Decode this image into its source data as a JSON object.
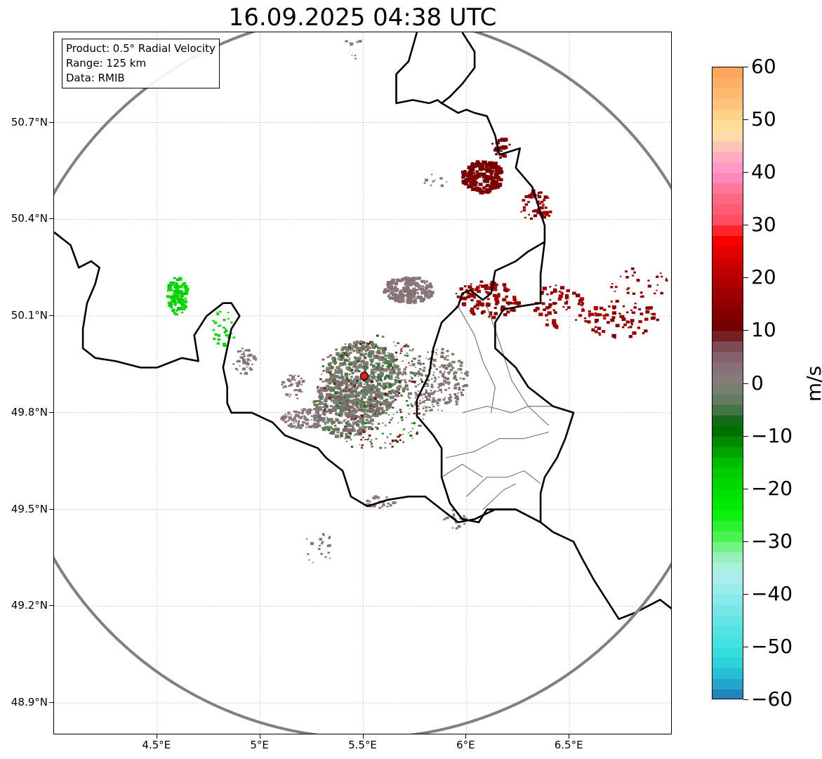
{
  "title": "16.09.2025 04:38 UTC",
  "info_box": {
    "product": "Product: 0.5° Radial Velocity",
    "range": "Range: 125 km",
    "data": "Data: RMIB"
  },
  "lat_ticks": [
    {
      "value": 50.7,
      "label": "50.7°N"
    },
    {
      "value": 50.4,
      "label": "50.4°N"
    },
    {
      "value": 50.1,
      "label": "50.1°N"
    },
    {
      "value": 49.8,
      "label": "49.8°N"
    },
    {
      "value": 49.5,
      "label": "49.5°N"
    },
    {
      "value": 49.2,
      "label": "49.2°N"
    },
    {
      "value": 48.9,
      "label": "48.9°N"
    }
  ],
  "lon_ticks": [
    {
      "value": 4.5,
      "label": "4.5°E"
    },
    {
      "value": 5.0,
      "label": "5°E"
    },
    {
      "value": 5.5,
      "label": "5.5°E"
    },
    {
      "value": 6.0,
      "label": "6°E"
    },
    {
      "value": 6.5,
      "label": "6.5°E"
    }
  ],
  "extent": {
    "lon_min": 4.0,
    "lon_max": 7.0,
    "lat_min": 48.8,
    "lat_max": 50.98
  },
  "radar_site": {
    "lon": 5.505,
    "lat": 49.914,
    "color": "#e41a1c"
  },
  "colorbar": {
    "unit": "m/s",
    "min": -60,
    "max": 60,
    "ticks": [
      {
        "value": 60,
        "label": "60"
      },
      {
        "value": 50,
        "label": "50"
      },
      {
        "value": 40,
        "label": "40"
      },
      {
        "value": 30,
        "label": "30"
      },
      {
        "value": 20,
        "label": "20"
      },
      {
        "value": 10,
        "label": "10"
      },
      {
        "value": 0,
        "label": "0"
      },
      {
        "value": -10,
        "label": "−10"
      },
      {
        "value": -20,
        "label": "−20"
      },
      {
        "value": -30,
        "label": "−30"
      },
      {
        "value": -40,
        "label": "−40"
      },
      {
        "value": -50,
        "label": "−50"
      },
      {
        "value": -60,
        "label": "−60"
      }
    ],
    "stops": [
      {
        "v": -60,
        "c": "#1f77b4"
      },
      {
        "v": -56,
        "c": "#26b4d4"
      },
      {
        "v": -52,
        "c": "#2edcdc"
      },
      {
        "v": -44,
        "c": "#6ce6e6"
      },
      {
        "v": -36,
        "c": "#b4eef0"
      },
      {
        "v": -32,
        "c": "#90f0a8"
      },
      {
        "v": -30,
        "c": "#55f560"
      },
      {
        "v": -24,
        "c": "#00ee00"
      },
      {
        "v": -16,
        "c": "#00c800"
      },
      {
        "v": -8,
        "c": "#006400"
      },
      {
        "v": -4,
        "c": "#5a7a5a"
      },
      {
        "v": 0,
        "c": "#868078"
      },
      {
        "v": 4,
        "c": "#8a6a78"
      },
      {
        "v": 8,
        "c": "#7a4048"
      },
      {
        "v": 10,
        "c": "#6e0000"
      },
      {
        "v": 20,
        "c": "#b40000"
      },
      {
        "v": 28,
        "c": "#ff0000"
      },
      {
        "v": 30,
        "c": "#ff4858"
      },
      {
        "v": 36,
        "c": "#ff6e8c"
      },
      {
        "v": 40,
        "c": "#ff90c8"
      },
      {
        "v": 44,
        "c": "#ffb8c0"
      },
      {
        "v": 48,
        "c": "#ffe6a0"
      },
      {
        "v": 52,
        "c": "#ffc880"
      },
      {
        "v": 60,
        "c": "#ffa055"
      }
    ]
  },
  "borders_bold": [
    [
      [
        4.0,
        50.36
      ],
      [
        4.08,
        50.32
      ],
      [
        4.12,
        50.25
      ],
      [
        4.18,
        50.27
      ],
      [
        4.22,
        50.25
      ],
      [
        4.2,
        50.2
      ],
      [
        4.16,
        50.14
      ],
      [
        4.14,
        50.06
      ],
      [
        4.14,
        50.0
      ],
      [
        4.2,
        49.97
      ],
      [
        4.3,
        49.96
      ],
      [
        4.42,
        49.94
      ],
      [
        4.5,
        49.94
      ],
      [
        4.62,
        49.97
      ],
      [
        4.7,
        49.96
      ],
      [
        4.68,
        50.04
      ],
      [
        4.74,
        50.1
      ],
      [
        4.82,
        50.14
      ],
      [
        4.86,
        50.14
      ],
      [
        4.9,
        50.1
      ],
      [
        4.86,
        50.06
      ],
      [
        4.84,
        50.0
      ],
      [
        4.82,
        49.94
      ],
      [
        4.84,
        49.88
      ],
      [
        4.84,
        49.83
      ],
      [
        4.86,
        49.8
      ],
      [
        4.96,
        49.8
      ],
      [
        5.06,
        49.77
      ],
      [
        5.12,
        49.73
      ],
      [
        5.2,
        49.71
      ],
      [
        5.28,
        49.69
      ],
      [
        5.32,
        49.66
      ],
      [
        5.4,
        49.62
      ],
      [
        5.44,
        49.54
      ],
      [
        5.52,
        49.51
      ],
      [
        5.62,
        49.53
      ],
      [
        5.72,
        49.54
      ],
      [
        5.8,
        49.54
      ],
      [
        5.88,
        49.5
      ],
      [
        5.96,
        49.46
      ],
      [
        6.04,
        49.47
      ],
      [
        6.14,
        49.5
      ],
      [
        6.24,
        49.5
      ],
      [
        6.36,
        49.46
      ],
      [
        6.42,
        49.43
      ],
      [
        6.52,
        49.4
      ],
      [
        6.56,
        49.35
      ],
      [
        6.62,
        49.28
      ],
      [
        6.68,
        49.22
      ],
      [
        6.74,
        49.16
      ],
      [
        6.82,
        49.18
      ],
      [
        6.88,
        49.2
      ],
      [
        6.94,
        49.22
      ],
      [
        7.0,
        49.19
      ]
    ],
    [
      [
        5.82,
        50.76
      ],
      [
        5.86,
        50.77
      ],
      [
        5.88,
        50.76
      ],
      [
        5.96,
        50.73
      ],
      [
        6.0,
        50.74
      ],
      [
        6.04,
        50.73
      ],
      [
        6.1,
        50.72
      ],
      [
        6.14,
        50.66
      ],
      [
        6.16,
        50.6
      ],
      [
        6.26,
        50.62
      ],
      [
        6.24,
        50.56
      ],
      [
        6.32,
        50.5
      ],
      [
        6.34,
        50.46
      ],
      [
        6.38,
        50.38
      ],
      [
        6.38,
        50.33
      ],
      [
        6.3,
        50.3
      ],
      [
        6.24,
        50.27
      ],
      [
        6.14,
        50.24
      ],
      [
        6.12,
        50.17
      ],
      [
        6.08,
        50.15
      ],
      [
        6.02,
        50.18
      ],
      [
        5.98,
        50.17
      ],
      [
        5.96,
        50.13
      ],
      [
        5.88,
        50.08
      ],
      [
        5.84,
        50.0
      ],
      [
        5.82,
        49.92
      ],
      [
        5.76,
        49.84
      ],
      [
        5.76,
        49.79
      ],
      [
        5.84,
        49.73
      ],
      [
        5.88,
        49.69
      ],
      [
        5.88,
        49.6
      ],
      [
        5.92,
        49.52
      ],
      [
        5.98,
        49.47
      ],
      [
        6.06,
        49.46
      ],
      [
        6.1,
        49.5
      ],
      [
        6.16,
        49.5
      ],
      [
        6.24,
        49.5
      ],
      [
        6.36,
        49.46
      ]
    ],
    [
      [
        6.38,
        50.33
      ],
      [
        6.36,
        50.23
      ],
      [
        6.36,
        50.14
      ],
      [
        6.26,
        50.13
      ],
      [
        6.18,
        50.12
      ],
      [
        6.14,
        50.08
      ],
      [
        6.14,
        50.0
      ],
      [
        6.24,
        49.94
      ],
      [
        6.3,
        49.88
      ],
      [
        6.42,
        49.82
      ],
      [
        6.52,
        49.8
      ],
      [
        6.48,
        49.72
      ],
      [
        6.44,
        49.66
      ],
      [
        6.38,
        49.6
      ],
      [
        6.36,
        49.55
      ],
      [
        6.36,
        49.46
      ]
    ],
    [
      [
        5.82,
        50.76
      ],
      [
        5.74,
        50.77
      ],
      [
        5.66,
        50.76
      ],
      [
        5.66,
        50.79
      ],
      [
        5.66,
        50.85
      ],
      [
        5.72,
        50.89
      ],
      [
        5.76,
        50.98
      ]
    ],
    [
      [
        5.98,
        50.98
      ],
      [
        6.04,
        50.92
      ],
      [
        6.04,
        50.87
      ],
      [
        5.98,
        50.82
      ],
      [
        5.92,
        50.78
      ],
      [
        5.88,
        50.76
      ]
    ]
  ],
  "borders_thin": [
    [
      [
        5.96,
        50.13
      ],
      [
        6.04,
        50.04
      ],
      [
        6.08,
        49.96
      ],
      [
        6.14,
        49.88
      ],
      [
        6.12,
        49.8
      ]
    ],
    [
      [
        6.1,
        50.13
      ],
      [
        6.16,
        50.02
      ],
      [
        6.22,
        49.9
      ],
      [
        6.3,
        49.82
      ],
      [
        6.4,
        49.76
      ]
    ],
    [
      [
        5.98,
        49.8
      ],
      [
        6.1,
        49.82
      ],
      [
        6.22,
        49.8
      ],
      [
        6.3,
        49.82
      ],
      [
        6.42,
        49.82
      ]
    ],
    [
      [
        5.9,
        49.66
      ],
      [
        6.04,
        49.68
      ],
      [
        6.16,
        49.72
      ],
      [
        6.28,
        49.72
      ],
      [
        6.4,
        49.74
      ]
    ],
    [
      [
        6.0,
        49.54
      ],
      [
        6.1,
        49.6
      ],
      [
        6.2,
        49.6
      ],
      [
        6.28,
        49.62
      ],
      [
        6.36,
        49.58
      ]
    ],
    [
      [
        6.08,
        49.5
      ],
      [
        6.18,
        49.56
      ],
      [
        6.24,
        49.58
      ]
    ],
    [
      [
        5.88,
        49.6
      ],
      [
        5.98,
        49.64
      ],
      [
        6.08,
        49.6
      ]
    ]
  ],
  "echo_clusters": [
    {
      "lon": 5.5,
      "lat": 49.9,
      "rlon": 0.18,
      "rlat": 0.12,
      "n": 520,
      "vmin": -6,
      "vmax": 3,
      "size": 5,
      "seed": 11
    },
    {
      "lon": 5.42,
      "lat": 49.82,
      "rlon": 0.16,
      "rlat": 0.1,
      "n": 320,
      "vmin": -5,
      "vmax": 6,
      "size": 5,
      "seed": 12
    },
    {
      "lon": 5.55,
      "lat": 49.86,
      "rlon": 0.3,
      "rlat": 0.18,
      "n": 400,
      "vmin": -12,
      "vmax": 14,
      "size": 3,
      "seed": 13
    },
    {
      "lon": 5.22,
      "lat": 49.78,
      "rlon": 0.12,
      "rlat": 0.03,
      "n": 120,
      "vmin": 0,
      "vmax": 4,
      "size": 4,
      "seed": 14
    },
    {
      "lon": 4.92,
      "lat": 49.96,
      "rlon": 0.06,
      "rlat": 0.04,
      "n": 40,
      "vmin": 0,
      "vmax": 4,
      "size": 4,
      "seed": 15
    },
    {
      "lon": 5.16,
      "lat": 49.88,
      "rlon": 0.06,
      "rlat": 0.04,
      "n": 40,
      "vmin": 0,
      "vmax": 4,
      "size": 4,
      "seed": 16
    },
    {
      "lon": 5.85,
      "lat": 49.9,
      "rlon": 0.16,
      "rlat": 0.1,
      "n": 220,
      "vmin": -4,
      "vmax": 5,
      "size": 4,
      "seed": 17
    },
    {
      "lon": 5.72,
      "lat": 50.18,
      "rlon": 0.12,
      "rlat": 0.04,
      "n": 200,
      "vmin": 0,
      "vmax": 4,
      "size": 5,
      "seed": 18
    },
    {
      "lon": 4.6,
      "lat": 50.16,
      "rlon": 0.05,
      "rlat": 0.06,
      "n": 90,
      "vmin": -22,
      "vmax": -16,
      "size": 5,
      "seed": 19
    },
    {
      "lon": 4.82,
      "lat": 50.06,
      "rlon": 0.06,
      "rlat": 0.06,
      "n": 30,
      "vmin": -22,
      "vmax": -16,
      "size": 4,
      "seed": 20
    },
    {
      "lon": 6.08,
      "lat": 50.53,
      "rlon": 0.1,
      "rlat": 0.05,
      "n": 160,
      "vmin": 10,
      "vmax": 14,
      "size": 6,
      "seed": 21
    },
    {
      "lon": 6.17,
      "lat": 50.62,
      "rlon": 0.05,
      "rlat": 0.03,
      "n": 30,
      "vmin": 10,
      "vmax": 14,
      "size": 5,
      "seed": 22
    },
    {
      "lon": 6.34,
      "lat": 50.44,
      "rlon": 0.08,
      "rlat": 0.05,
      "n": 50,
      "vmin": 12,
      "vmax": 18,
      "size": 5,
      "seed": 23
    },
    {
      "lon": 6.1,
      "lat": 50.15,
      "rlon": 0.16,
      "rlat": 0.06,
      "n": 120,
      "vmin": 12,
      "vmax": 20,
      "size": 5,
      "seed": 24
    },
    {
      "lon": 6.45,
      "lat": 50.13,
      "rlon": 0.12,
      "rlat": 0.07,
      "n": 60,
      "vmin": 12,
      "vmax": 20,
      "size": 5,
      "seed": 25
    },
    {
      "lon": 6.75,
      "lat": 50.09,
      "rlon": 0.18,
      "rlat": 0.06,
      "n": 80,
      "vmin": 12,
      "vmax": 20,
      "size": 5,
      "seed": 26
    },
    {
      "lon": 6.84,
      "lat": 50.2,
      "rlon": 0.14,
      "rlat": 0.05,
      "n": 30,
      "vmin": 12,
      "vmax": 20,
      "size": 4,
      "seed": 27
    },
    {
      "lon": 5.28,
      "lat": 49.38,
      "rlon": 0.08,
      "rlat": 0.05,
      "n": 20,
      "vmin": 0,
      "vmax": 4,
      "size": 4,
      "seed": 28
    },
    {
      "lon": 5.95,
      "lat": 49.47,
      "rlon": 0.06,
      "rlat": 0.03,
      "n": 20,
      "vmin": 0,
      "vmax": 4,
      "size": 4,
      "seed": 29
    },
    {
      "lon": 5.58,
      "lat": 49.52,
      "rlon": 0.08,
      "rlat": 0.02,
      "n": 25,
      "vmin": -2,
      "vmax": 4,
      "size": 4,
      "seed": 30
    },
    {
      "lon": 5.45,
      "lat": 50.95,
      "rlon": 0.04,
      "rlat": 0.01,
      "n": 8,
      "vmin": 0,
      "vmax": 4,
      "size": 4,
      "seed": 31
    },
    {
      "lon": 5.85,
      "lat": 50.52,
      "rlon": 0.06,
      "rlat": 0.02,
      "n": 10,
      "vmin": 0,
      "vmax": 4,
      "size": 4,
      "seed": 32
    },
    {
      "lon": 5.45,
      "lat": 50.9,
      "rlon": 0.02,
      "rlat": 0.01,
      "n": 3,
      "vmin": 0,
      "vmax": 4,
      "size": 3,
      "seed": 33
    }
  ]
}
